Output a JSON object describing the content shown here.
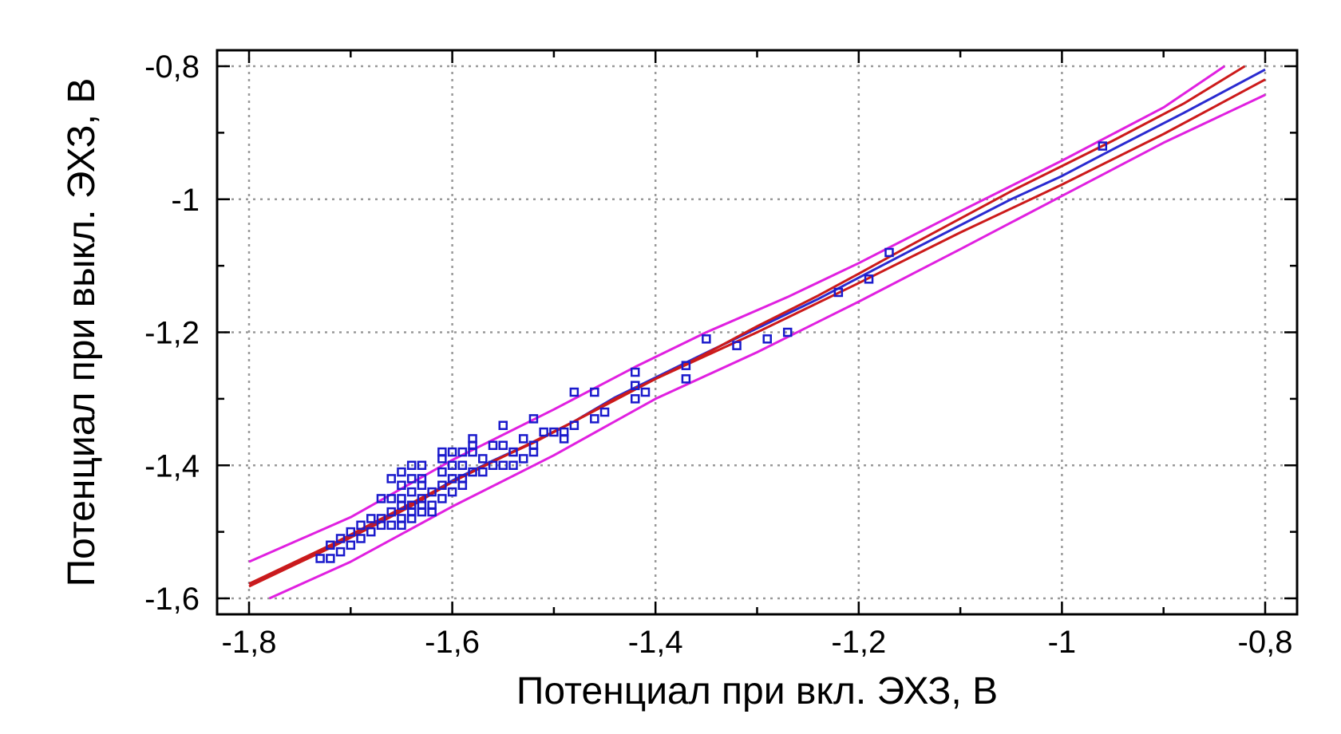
{
  "chart_data": {
    "type": "scatter",
    "xlabel": "Потенциал при вкл. ЭХЗ, В",
    "ylabel": "Потенциал при выкл. ЭХЗ, В",
    "xlim": [
      -1.8,
      -0.8
    ],
    "ylim": [
      -1.6,
      -0.8
    ],
    "x_ticks": [
      -1.8,
      -1.6,
      -1.4,
      -1.2,
      -1.0,
      -0.8
    ],
    "x_tick_labels": [
      "-1,8",
      "-1,6",
      "-1,4",
      "-1,2",
      "-1",
      "-0,8"
    ],
    "y_ticks": [
      -1.6,
      -1.4,
      -1.2,
      -1.0,
      -0.8
    ],
    "y_tick_labels": [
      "-1,6",
      "-1,4",
      "-1,2",
      "-1",
      "-0,8"
    ],
    "grid": true,
    "colors": {
      "points": "#1a1acc",
      "fit_blue": "#2a2ad0",
      "fit_red": "#cc1a1a",
      "band": "#e020e0",
      "grid": "#999999",
      "axis": "#000000"
    },
    "points": [
      [
        -1.73,
        -1.54
      ],
      [
        -1.72,
        -1.54
      ],
      [
        -1.72,
        -1.52
      ],
      [
        -1.71,
        -1.53
      ],
      [
        -1.71,
        -1.51
      ],
      [
        -1.7,
        -1.52
      ],
      [
        -1.7,
        -1.5
      ],
      [
        -1.69,
        -1.51
      ],
      [
        -1.69,
        -1.49
      ],
      [
        -1.68,
        -1.5
      ],
      [
        -1.68,
        -1.48
      ],
      [
        -1.67,
        -1.49
      ],
      [
        -1.67,
        -1.48
      ],
      [
        -1.67,
        -1.45
      ],
      [
        -1.66,
        -1.49
      ],
      [
        -1.66,
        -1.47
      ],
      [
        -1.66,
        -1.45
      ],
      [
        -1.66,
        -1.42
      ],
      [
        -1.65,
        -1.49
      ],
      [
        -1.65,
        -1.48
      ],
      [
        -1.65,
        -1.46
      ],
      [
        -1.65,
        -1.45
      ],
      [
        -1.65,
        -1.43
      ],
      [
        -1.65,
        -1.41
      ],
      [
        -1.64,
        -1.48
      ],
      [
        -1.64,
        -1.47
      ],
      [
        -1.64,
        -1.46
      ],
      [
        -1.64,
        -1.44
      ],
      [
        -1.64,
        -1.42
      ],
      [
        -1.64,
        -1.4
      ],
      [
        -1.63,
        -1.47
      ],
      [
        -1.63,
        -1.46
      ],
      [
        -1.63,
        -1.45
      ],
      [
        -1.63,
        -1.43
      ],
      [
        -1.63,
        -1.42
      ],
      [
        -1.63,
        -1.4
      ],
      [
        -1.62,
        -1.47
      ],
      [
        -1.62,
        -1.46
      ],
      [
        -1.62,
        -1.44
      ],
      [
        -1.61,
        -1.45
      ],
      [
        -1.61,
        -1.43
      ],
      [
        -1.61,
        -1.41
      ],
      [
        -1.61,
        -1.39
      ],
      [
        -1.61,
        -1.38
      ],
      [
        -1.6,
        -1.44
      ],
      [
        -1.6,
        -1.42
      ],
      [
        -1.6,
        -1.4
      ],
      [
        -1.6,
        -1.38
      ],
      [
        -1.59,
        -1.43
      ],
      [
        -1.59,
        -1.42
      ],
      [
        -1.59,
        -1.4
      ],
      [
        -1.59,
        -1.38
      ],
      [
        -1.58,
        -1.41
      ],
      [
        -1.58,
        -1.38
      ],
      [
        -1.58,
        -1.37
      ],
      [
        -1.58,
        -1.36
      ],
      [
        -1.57,
        -1.41
      ],
      [
        -1.57,
        -1.39
      ],
      [
        -1.56,
        -1.4
      ],
      [
        -1.56,
        -1.37
      ],
      [
        -1.55,
        -1.4
      ],
      [
        -1.55,
        -1.37
      ],
      [
        -1.55,
        -1.34
      ],
      [
        -1.54,
        -1.4
      ],
      [
        -1.54,
        -1.38
      ],
      [
        -1.53,
        -1.39
      ],
      [
        -1.53,
        -1.36
      ],
      [
        -1.52,
        -1.38
      ],
      [
        -1.52,
        -1.37
      ],
      [
        -1.52,
        -1.33
      ],
      [
        -1.51,
        -1.35
      ],
      [
        -1.5,
        -1.35
      ],
      [
        -1.49,
        -1.36
      ],
      [
        -1.49,
        -1.35
      ],
      [
        -1.48,
        -1.34
      ],
      [
        -1.48,
        -1.29
      ],
      [
        -1.46,
        -1.33
      ],
      [
        -1.46,
        -1.29
      ],
      [
        -1.45,
        -1.32
      ],
      [
        -1.42,
        -1.3
      ],
      [
        -1.42,
        -1.28
      ],
      [
        -1.42,
        -1.26
      ],
      [
        -1.41,
        -1.29
      ],
      [
        -1.37,
        -1.27
      ],
      [
        -1.37,
        -1.25
      ],
      [
        -1.35,
        -1.21
      ],
      [
        -1.32,
        -1.22
      ],
      [
        -1.29,
        -1.21
      ],
      [
        -1.27,
        -1.2
      ],
      [
        -1.22,
        -1.14
      ],
      [
        -1.19,
        -1.12
      ],
      [
        -1.17,
        -1.08
      ],
      [
        -0.96,
        -0.92
      ]
    ],
    "lines": [
      {
        "name": "",
        "role": "fit_blue",
        "points": [
          [
            -1.8,
            -1.578
          ],
          [
            -1.76,
            -1.551
          ],
          [
            -1.72,
            -1.522
          ],
          [
            -1.68,
            -1.491
          ],
          [
            -1.64,
            -1.459
          ],
          [
            -1.6,
            -1.423
          ],
          [
            -1.56,
            -1.393
          ],
          [
            -1.52,
            -1.365
          ],
          [
            -1.48,
            -1.334
          ],
          [
            -1.44,
            -1.298
          ],
          [
            -1.4,
            -1.268
          ],
          [
            -1.36,
            -1.238
          ],
          [
            -1.3,
            -1.194
          ],
          [
            -1.24,
            -1.15
          ],
          [
            -1.2,
            -1.118
          ],
          [
            -1.15,
            -1.078
          ],
          [
            -1.05,
            -1.0
          ],
          [
            -1.0,
            -0.965
          ],
          [
            -0.95,
            -0.925
          ],
          [
            -0.88,
            -0.87
          ],
          [
            -0.8,
            -0.805
          ]
        ]
      },
      {
        "name": "",
        "role": "fit_red",
        "points": [
          [
            -1.8,
            -1.582
          ],
          [
            -1.76,
            -1.553
          ],
          [
            -1.72,
            -1.524
          ],
          [
            -1.68,
            -1.493
          ],
          [
            -1.64,
            -1.461
          ],
          [
            -1.6,
            -1.425
          ],
          [
            -1.56,
            -1.394
          ],
          [
            -1.52,
            -1.366
          ],
          [
            -1.48,
            -1.334
          ],
          [
            -1.44,
            -1.3
          ],
          [
            -1.4,
            -1.27
          ],
          [
            -1.36,
            -1.24
          ],
          [
            -1.3,
            -1.191
          ],
          [
            -1.24,
            -1.145
          ],
          [
            -1.2,
            -1.112
          ],
          [
            -1.15,
            -1.07
          ],
          [
            -1.05,
            -0.988
          ],
          [
            -1.0,
            -0.95
          ],
          [
            -0.95,
            -0.912
          ],
          [
            -0.88,
            -0.856
          ],
          [
            -0.82,
            -0.8
          ]
        ]
      },
      {
        "name": "",
        "role": "fit_red",
        "points": [
          [
            -1.8,
            -1.578
          ],
          [
            -1.72,
            -1.52
          ],
          [
            -1.6,
            -1.425
          ],
          [
            -1.48,
            -1.334
          ],
          [
            -1.4,
            -1.27
          ],
          [
            -1.3,
            -1.2
          ],
          [
            -1.2,
            -1.126
          ],
          [
            -1.1,
            -1.05
          ],
          [
            -1.0,
            -0.978
          ],
          [
            -0.9,
            -0.902
          ],
          [
            -0.8,
            -0.82
          ]
        ]
      },
      {
        "name": "",
        "role": "band",
        "points": [
          [
            -1.8,
            -1.545
          ],
          [
            -1.7,
            -1.478
          ],
          [
            -1.6,
            -1.392
          ],
          [
            -1.5,
            -1.316
          ],
          [
            -1.42,
            -1.252
          ],
          [
            -1.35,
            -1.2
          ],
          [
            -1.27,
            -1.147
          ],
          [
            -1.2,
            -1.096
          ],
          [
            -1.1,
            -1.018
          ],
          [
            -1.0,
            -0.942
          ],
          [
            -0.9,
            -0.862
          ],
          [
            -0.84,
            -0.8
          ]
        ]
      },
      {
        "name": "",
        "role": "band",
        "points": [
          [
            -1.78,
            -1.6
          ],
          [
            -1.7,
            -1.545
          ],
          [
            -1.6,
            -1.462
          ],
          [
            -1.5,
            -1.385
          ],
          [
            -1.4,
            -1.3
          ],
          [
            -1.3,
            -1.23
          ],
          [
            -1.2,
            -1.154
          ],
          [
            -1.1,
            -1.075
          ],
          [
            -1.0,
            -0.995
          ],
          [
            -0.9,
            -0.915
          ],
          [
            -0.8,
            -0.843
          ]
        ]
      }
    ]
  }
}
